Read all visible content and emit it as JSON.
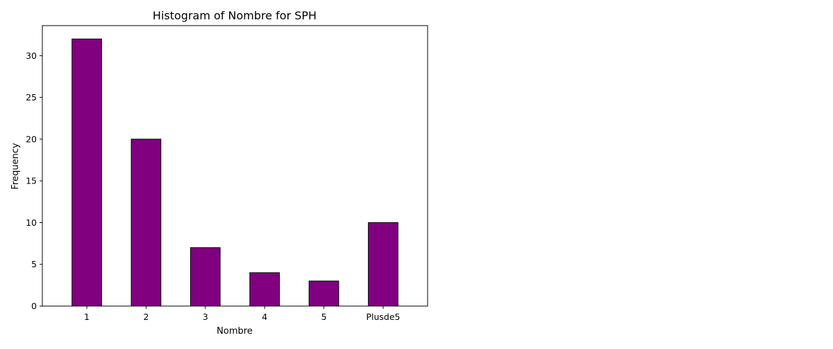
{
  "chart_data": {
    "type": "bar",
    "title": "Histogram of Nombre for SPH",
    "xlabel": "Nombre",
    "ylabel": "Frequency",
    "categories": [
      "1",
      "2",
      "3",
      "4",
      "5",
      "Plusde5"
    ],
    "values": [
      32,
      20,
      7,
      4,
      3,
      10
    ],
    "ylim": [
      0,
      33.6
    ],
    "yticks": [
      0,
      5,
      10,
      15,
      20,
      25,
      30
    ],
    "grid": false,
    "bar_color": "#800080",
    "edge_color": "#000000"
  }
}
